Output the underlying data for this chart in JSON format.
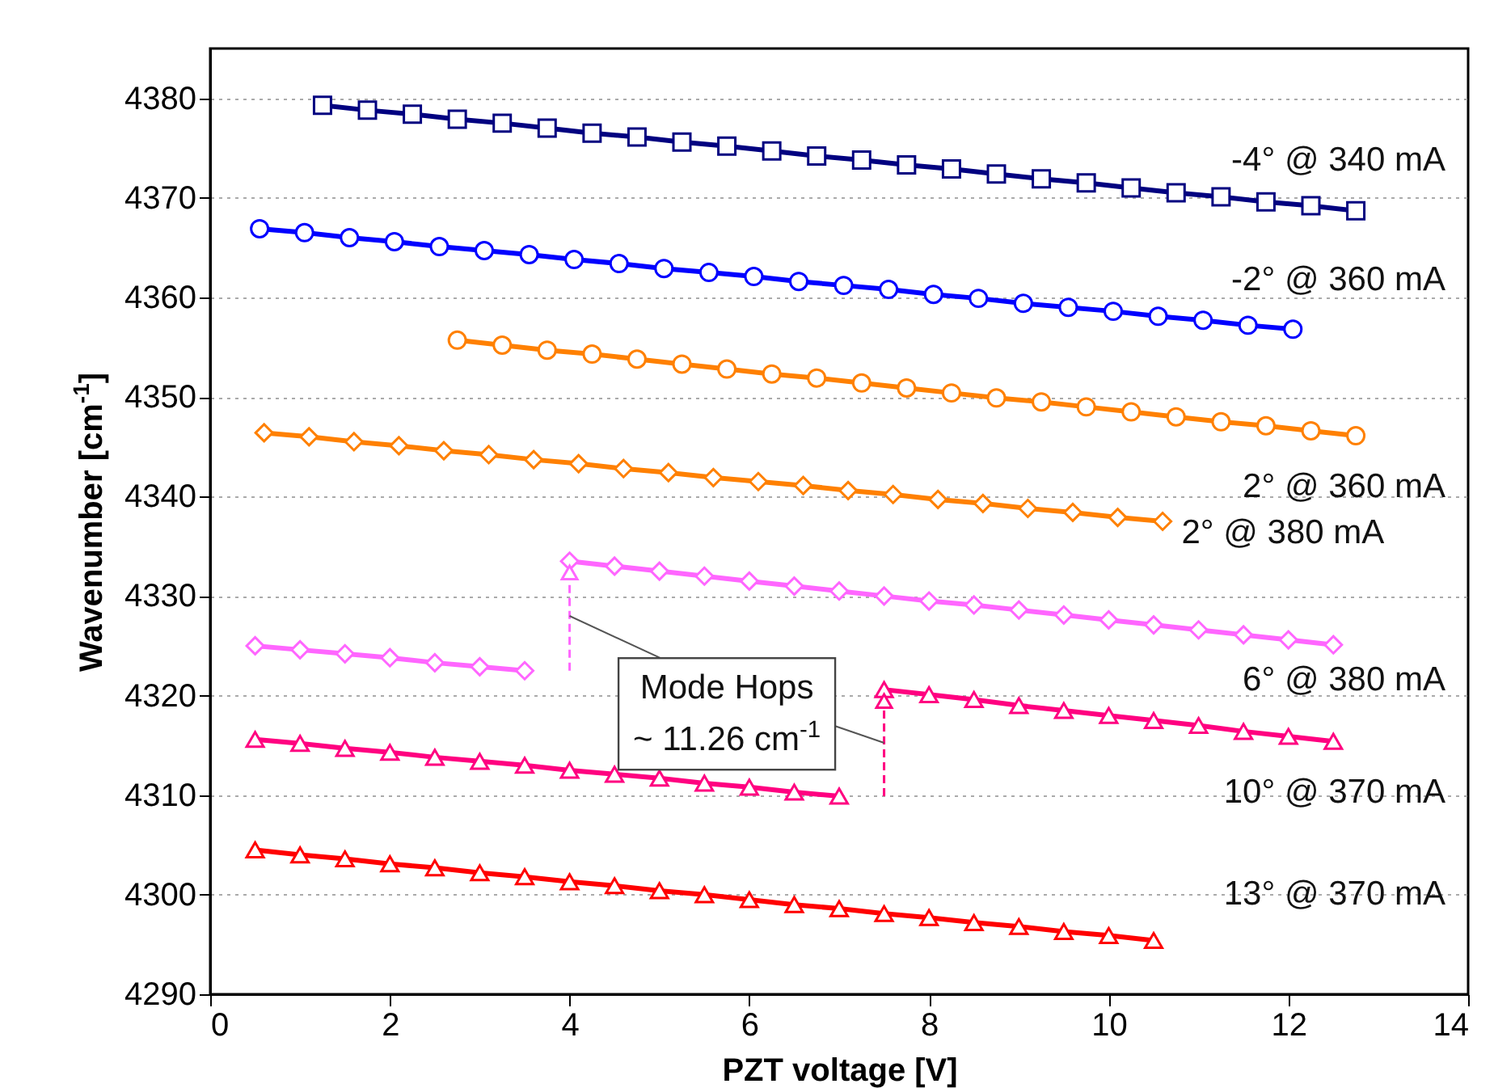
{
  "chart_data": {
    "type": "line",
    "xlabel": "PZT voltage [V]",
    "ylabel": "Wavenumber [cm$^{-1}$]",
    "xlim": [
      0,
      14
    ],
    "ylim": [
      4290,
      4385
    ],
    "xticks": [
      0,
      2,
      4,
      6,
      8,
      10,
      12,
      14
    ],
    "yticks": [
      4290,
      4300,
      4310,
      4320,
      4330,
      4340,
      4350,
      4360,
      4370,
      4380
    ],
    "grid": "y",
    "line_style": "solid",
    "series": [
      {
        "name": "-4° @ 340 mA",
        "color": "#000080",
        "marker": "square",
        "x": [
          1.25,
          1.75,
          2.25,
          2.75,
          3.25,
          3.75,
          4.25,
          4.75,
          5.25,
          5.75,
          6.25,
          6.75,
          7.25,
          7.75,
          8.25,
          8.75,
          9.25,
          9.75,
          10.25,
          10.75,
          11.25,
          11.75,
          12.25,
          12.75
        ],
        "values": [
          4379.3,
          4378.8,
          4378.4,
          4377.9,
          4377.5,
          4377.0,
          4376.5,
          4376.1,
          4375.6,
          4375.2,
          4374.7,
          4374.2,
          4373.8,
          4373.3,
          4372.9,
          4372.4,
          4371.9,
          4371.5,
          4371.0,
          4370.5,
          4370.1,
          4369.6,
          4369.2,
          4368.7
        ]
      },
      {
        "name": "-2° @ 360 mA",
        "color": "#0000ff",
        "marker": "circle",
        "x": [
          0.55,
          1.05,
          1.55,
          2.05,
          2.55,
          3.05,
          3.55,
          4.05,
          4.55,
          5.05,
          5.55,
          6.05,
          6.55,
          7.05,
          7.55,
          8.05,
          8.55,
          9.05,
          9.55,
          10.05,
          10.55,
          11.05,
          11.55,
          12.05
        ],
        "values": [
          4366.9,
          4366.5,
          4366.0,
          4365.6,
          4365.1,
          4364.7,
          4364.3,
          4363.8,
          4363.4,
          4362.9,
          4362.5,
          4362.1,
          4361.6,
          4361.2,
          4360.8,
          4360.3,
          4359.9,
          4359.4,
          4359.0,
          4358.6,
          4358.1,
          4357.7,
          4357.2,
          4356.8
        ]
      },
      {
        "name": "2° @ 360 mA",
        "color": "#ff8000",
        "marker": "circle",
        "x": [
          2.75,
          3.25,
          3.75,
          4.25,
          4.75,
          5.25,
          5.75,
          6.25,
          6.75,
          7.25,
          7.75,
          8.25,
          8.75,
          9.25,
          9.75,
          10.25,
          10.75,
          11.25,
          11.75,
          12.25,
          12.75
        ],
        "values": [
          4355.7,
          4355.2,
          4354.7,
          4354.3,
          4353.8,
          4353.3,
          4352.8,
          4352.3,
          4351.9,
          4351.4,
          4350.9,
          4350.4,
          4349.9,
          4349.5,
          4349.0,
          4348.5,
          4348.0,
          4347.5,
          4347.1,
          4346.6,
          4346.1
        ]
      },
      {
        "name": "2° @ 380 mA",
        "color": "#ff8000",
        "marker": "diamond",
        "x": [
          0.6,
          1.1,
          1.6,
          2.1,
          2.6,
          3.1,
          3.6,
          4.1,
          4.6,
          5.1,
          5.6,
          6.1,
          6.6,
          7.1,
          7.6,
          8.1,
          8.6,
          9.1,
          9.6,
          10.1,
          10.6
        ],
        "values": [
          4346.4,
          4346.0,
          4345.5,
          4345.1,
          4344.6,
          4344.2,
          4343.7,
          4343.3,
          4342.8,
          4342.4,
          4341.9,
          4341.5,
          4341.1,
          4340.6,
          4340.2,
          4339.7,
          4339.3,
          4338.8,
          4338.4,
          4337.9,
          4337.5
        ]
      },
      {
        "name": "6° @ 380 mA",
        "color": "#ff66ff",
        "marker": "diamond",
        "x": [
          0.5,
          1,
          1.5,
          2,
          2.5,
          3,
          3.5,
          3.75,
          4,
          4.5,
          5,
          5.5,
          6,
          6.5,
          7,
          7.5,
          8,
          8.5,
          9,
          9.5,
          10,
          10.5,
          11,
          11.5,
          12,
          12.5
        ],
        "values": [
          4325.0,
          4324.6,
          4324.2,
          4323.8,
          4323.3,
          4322.9,
          4322.5,
          null,
          4333.5,
          4333.0,
          4332.5,
          4332.0,
          4331.5,
          4331.0,
          4330.5,
          4330.0,
          4329.5,
          4329.1,
          4328.6,
          4328.1,
          4327.6,
          4327.1,
          4326.6,
          4326.1,
          4325.6,
          4325.1
        ]
      },
      {
        "name": "10° @ 370 mA",
        "color": "#ff0080",
        "marker": "triangle",
        "x": [
          0.5,
          1,
          1.5,
          2,
          2.5,
          3,
          3.5,
          4,
          4.5,
          5,
          5.5,
          6,
          6.5,
          7,
          7.25,
          7.5,
          8,
          8.5,
          9,
          9.5,
          10,
          10.5,
          11,
          11.5,
          12,
          12.5
        ],
        "values": [
          4315.6,
          4315.2,
          4314.7,
          4314.3,
          4313.8,
          4313.4,
          4313.0,
          4312.5,
          4312.1,
          4311.7,
          4311.2,
          4310.8,
          4310.3,
          4309.9,
          null,
          4320.6,
          4320.1,
          4319.6,
          4319.0,
          4318.5,
          4318.0,
          4317.5,
          4317.0,
          4316.4,
          4315.9,
          4315.4
        ]
      },
      {
        "name": "13° @ 370 mA",
        "color": "#ff0000",
        "marker": "triangle",
        "x": [
          0.5,
          1,
          1.5,
          2,
          2.5,
          3,
          3.5,
          4,
          4.5,
          5,
          5.5,
          6,
          6.5,
          7,
          7.5,
          8,
          8.5,
          9,
          9.5,
          10,
          10.5
        ],
        "values": [
          4304.5,
          4304.0,
          4303.6,
          4303.1,
          4302.7,
          4302.2,
          4301.8,
          4301.3,
          4300.9,
          4300.4,
          4300.0,
          4299.5,
          4299.0,
          4298.6,
          4298.1,
          4297.7,
          4297.2,
          4296.8,
          4296.3,
          4295.9,
          4295.4
        ]
      }
    ],
    "annotations": [
      "Mode Hops\n~ 11.26 cm$^{-1}$"
    ]
  }
}
